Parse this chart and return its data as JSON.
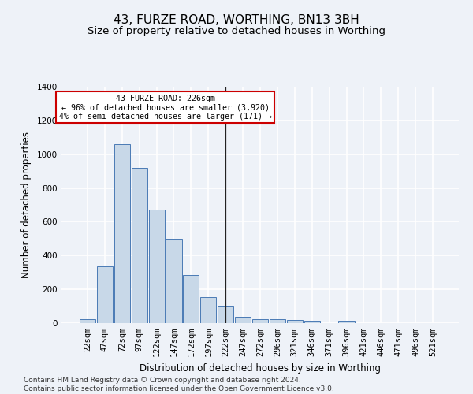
{
  "title": "43, FURZE ROAD, WORTHING, BN13 3BH",
  "subtitle": "Size of property relative to detached houses in Worthing",
  "xlabel": "Distribution of detached houses by size in Worthing",
  "ylabel": "Number of detached properties",
  "categories": [
    "22sqm",
    "47sqm",
    "72sqm",
    "97sqm",
    "122sqm",
    "147sqm",
    "172sqm",
    "197sqm",
    "222sqm",
    "247sqm",
    "272sqm",
    "296sqm",
    "321sqm",
    "346sqm",
    "371sqm",
    "396sqm",
    "421sqm",
    "446sqm",
    "471sqm",
    "496sqm",
    "521sqm"
  ],
  "values": [
    22,
    335,
    1060,
    920,
    670,
    500,
    285,
    155,
    105,
    38,
    25,
    22,
    18,
    13,
    0,
    12,
    0,
    0,
    0,
    0,
    0
  ],
  "bar_color": "#c8d8e8",
  "bar_edge_color": "#4a7ab5",
  "vline_x": 8,
  "annotation_title": "43 FURZE ROAD: 226sqm",
  "annotation_line1": "← 96% of detached houses are smaller (3,920)",
  "annotation_line2": "4% of semi-detached houses are larger (171) →",
  "annotation_box_color": "#ffffff",
  "annotation_box_edge": "#cc0000",
  "ylim": [
    0,
    1400
  ],
  "yticks": [
    0,
    200,
    400,
    600,
    800,
    1000,
    1200,
    1400
  ],
  "footer": "Contains HM Land Registry data © Crown copyright and database right 2024.\nContains public sector information licensed under the Open Government Licence v3.0.",
  "bg_color": "#eef2f8",
  "grid_color": "#ffffff",
  "title_fontsize": 11,
  "subtitle_fontsize": 9.5,
  "axis_label_fontsize": 8.5,
  "tick_fontsize": 7.5,
  "footer_fontsize": 6.5
}
